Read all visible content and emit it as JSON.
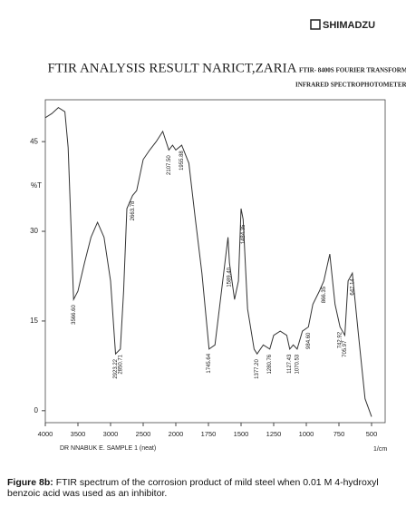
{
  "brand": "SHIMADZU",
  "chart_data": {
    "type": "line",
    "title": "FTIR ANALYSIS RESULT NARICT,ZARIA",
    "instrument": [
      "FTIR- 8400S FOURIER TRANSFORM",
      "INFRARED SPECTROPHOTOMETER"
    ],
    "y_label": "%T",
    "x_label": "1/cm",
    "sample_label": "DR NNABUK E. SAMPLE 1 (neat)",
    "xlim": [
      4000,
      500
    ],
    "xticks": [
      4000,
      3500,
      3000,
      2500,
      2000,
      1750,
      1500,
      1250,
      1000,
      750,
      500
    ],
    "ylim": [
      -2,
      52
    ],
    "yticks": [
      0,
      15,
      30,
      45
    ],
    "color": "#333333",
    "series": [
      {
        "name": "SAMPLE 1",
        "x": [
          4000,
          3900,
          3800,
          3700,
          3650,
          3600,
          3566.6,
          3500,
          3400,
          3300,
          3200,
          3100,
          3000,
          2923,
          2850,
          2800,
          2750,
          2663,
          2600,
          2500,
          2400,
          2300,
          2200,
          2107,
          2050,
          2000,
          1955,
          1900,
          1850,
          1800,
          1745,
          1700,
          1650,
          1600,
          1589,
          1550,
          1520,
          1500,
          1484,
          1450,
          1400,
          1377,
          1330,
          1280,
          1250,
          1200,
          1150,
          1127,
          1100,
          1070,
          1030,
          984,
          950,
          900,
          866,
          820,
          780,
          742,
          705,
          680,
          647,
          600,
          550,
          500
        ],
        "values": [
          49,
          49.7,
          50.7,
          50,
          44,
          29,
          18.6,
          20,
          24.7,
          29,
          31.5,
          29,
          21.7,
          9.5,
          10.3,
          20,
          33.8,
          36,
          36.8,
          42,
          43.6,
          45,
          46.7,
          43.6,
          44.4,
          43.6,
          44.4,
          41.4,
          32,
          23,
          10.3,
          11,
          20,
          29,
          24.7,
          18.6,
          21.7,
          33.8,
          32,
          17,
          10.3,
          9.5,
          11,
          10.3,
          12.6,
          13.3,
          12.6,
          10.3,
          11,
          10.3,
          13.3,
          14,
          17.8,
          20,
          21.7,
          26.2,
          17.8,
          14,
          12.6,
          21.7,
          23,
          12.6,
          2,
          -1
        ]
      }
    ],
    "peaks": [
      {
        "value": 3566.6,
        "label": "3566.60"
      },
      {
        "value": 2923.22,
        "label": "2923.22"
      },
      {
        "value": 2850.71,
        "label": "2850.71"
      },
      {
        "value": 2663.78,
        "label": "2663.78"
      },
      {
        "value": 2107.5,
        "label": "2107.50"
      },
      {
        "value": 1955.88,
        "label": "1955.88"
      },
      {
        "value": 1745.64,
        "label": "1745.64"
      },
      {
        "value": 1589.4,
        "label": "1589.40"
      },
      {
        "value": 1484.35,
        "label": "1484.35"
      },
      {
        "value": 1377.2,
        "label": "1377.20"
      },
      {
        "value": 1280.76,
        "label": "1280.76"
      },
      {
        "value": 1127.43,
        "label": "1127.43"
      },
      {
        "value": 1070.53,
        "label": "1070.53"
      },
      {
        "value": 984.6,
        "label": "984.60"
      },
      {
        "value": 866.35,
        "label": "866.35"
      },
      {
        "value": 742.92,
        "label": "742.92"
      },
      {
        "value": 705.97,
        "label": "705.97"
      },
      {
        "value": 647.14,
        "label": "647.14"
      }
    ]
  },
  "caption": {
    "label": "Figure 8b:",
    "text": "FTIR spectrum of the corrosion product of mild steel when 0.01 M 4-hydroxyl benzoic acid was used as an inhibitor."
  }
}
